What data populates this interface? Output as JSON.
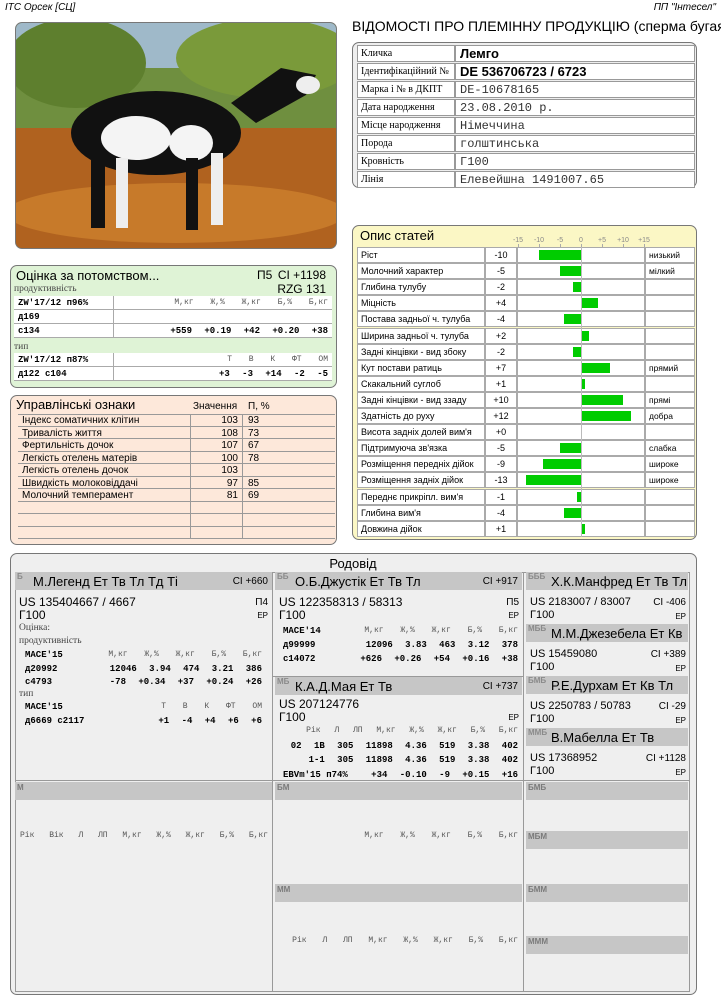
{
  "header": {
    "left": "ІТС Орсек [СЦ]",
    "right": "ПП \"Інтесел\"",
    "title": "ВІДОМОСТІ ПРО ПЛЕМІННУ ПРОДУКЦІЮ (сперма бугая)"
  },
  "identity": [
    [
      "Кличка",
      "Лемго"
    ],
    [
      "Ідентифікаційний №",
      "DE 536706723 / 6723"
    ],
    [
      "Марка і № в ДКПТ",
      "DE-10678165"
    ],
    [
      "Дата народження",
      "23.08.2010 р."
    ],
    [
      "Місце народження",
      "Німеччина"
    ],
    [
      "Порода",
      "голштинська"
    ],
    [
      "Кровність",
      "Г100"
    ],
    [
      "Лінія",
      "Елевейшна 1491007.65"
    ]
  ],
  "progeny": {
    "title": "Оцінка за потомством...",
    "rank": "П5",
    "ci": "CI +1198",
    "production_label": "продуктивність",
    "rzg": "RZG 131",
    "production": [
      [
        "ZW'17/12 п96%",
        "М,кг Ж,% Ж,кг Б,% Б,кг"
      ],
      [
        "д169"
      ],
      [
        "с134",
        "+559 +0.19 +42 +0.20 +38"
      ]
    ],
    "type_label": "тип",
    "type": [
      [
        "ZW'17/12 п87%",
        "Т В К ФТ ОМ"
      ],
      [
        "д122 с104",
        "+3 -3 +14 -2 -5"
      ]
    ]
  },
  "management": {
    "title": "Управлінські ознаки",
    "headers": [
      "Значення",
      "П, %"
    ],
    "rows": [
      [
        "Індекс соматичних клітин",
        103,
        93
      ],
      [
        "Тривалість життя",
        108,
        73
      ],
      [
        "Фертильність дочок",
        107,
        67
      ],
      [
        "Легкість отелень матерів",
        100,
        78
      ],
      [
        "Легкість отелень дочок",
        103
      ],
      [
        "Швидкість молоковіддачі",
        97,
        85
      ],
      [
        "Молочний темперамент",
        81,
        69
      ]
    ]
  },
  "traits": {
    "type": "bar",
    "title": "Опис статей",
    "xlim": [
      -15,
      15
    ],
    "xticks": [
      -15,
      -10,
      -5,
      0,
      {
        "value": 5,
        "label": "+5"
      },
      {
        "value": 10,
        "label": "+10"
      },
      {
        "value": 15,
        "label": "+15"
      }
    ],
    "color": "#00cc00",
    "categories": [
      "Ріст",
      "Молочний характер",
      "Глибина тулубу",
      "Міцність",
      "Постава задньої ч. тулуба",
      "Ширина задньої ч. тулуба",
      "Задні кінцівки - вид збоку",
      "Кут постави ратиць",
      "Скакальний суглоб",
      "Задні кінцівки - вид ззаду",
      "Здатність до руху",
      "Висота задніх долей вим'я",
      "Підтримуюча зв'язка",
      "Розміщення передніх дійок",
      "Розміщення задніх дійок",
      "Переднє прикріпл. вим'я",
      "Глибина вим'я",
      "Довжина дійок"
    ],
    "values": [
      -10,
      -5,
      -2,
      4,
      -4,
      2,
      -2,
      7,
      1,
      10,
      12,
      0,
      -5,
      -9,
      -13,
      -1,
      -4,
      1
    ],
    "value_labels": [
      "-10",
      "-5",
      "-2",
      "+4",
      "-4",
      "+2",
      "-2",
      "+7",
      "+1",
      "+10",
      "+12",
      "+0",
      "-5",
      "-9",
      "-13",
      "-1",
      "-4",
      "+1"
    ],
    "notes": [
      "низький",
      "мілкий",
      null,
      null,
      null,
      null,
      null,
      "прямий",
      null,
      "прямі",
      "добра",
      null,
      "слабка",
      "широке",
      "широке",
      null,
      null,
      null
    ]
  },
  "pedigree": {
    "title": "Родовід",
    "sire": {
      "code": "Б",
      "name": "М.Легенд Ет Тв Тл Тд Ті",
      "ci": "CI +660",
      "id": "US 135404667 / 4667",
      "rank": "П4",
      "blood": "Г100",
      "mark": "EP",
      "eval_label": "Оцінка:",
      "production_label": "продуктивність",
      "production": [
        [
          "MACE'15",
          "М,кг Ж,% Ж,кг Б,% Б,кг"
        ],
        [
          "д20992",
          "12046 3.94 474 3.21 386"
        ],
        [
          "с4793",
          "-78 +0.34 +37 +0.24 +26"
        ]
      ],
      "type_label": "тип",
      "type": [
        [
          "MACE'15",
          "Т В К ФТ ОМ"
        ],
        [
          "д6669 с2117",
          "+1 -4 +4 +6 +6"
        ]
      ]
    },
    "sire_sire": {
      "code": "ББ",
      "name": "О.Б.Джустік Ет Тв Тл",
      "ci": "CI +917",
      "id": "US 122358313 / 58313",
      "rank": "П5",
      "blood": "Г100",
      "mark": "EP",
      "production": [
        [
          "MACE'14",
          "М,кг Ж,% Ж,кг Б,% Б,кг"
        ],
        [
          "д99999",
          "12096 3.83 463 3.12 378"
        ],
        [
          "с14072",
          "+626 +0.26 +54 +0.16 +38"
        ]
      ]
    },
    "sire_dam": {
      "code": "МБ",
      "name": "К.А.Д.Мая Ет Тв",
      "ci": "CI +737",
      "id": "US 207124776",
      "blood": "Г100",
      "mark": "EP",
      "lactations": [
        [
          "Рік Л ЛП М,кг Ж,% Ж,кг Б,% Б,кг"
        ],
        [
          "02 1В 305 11898 4.36 519 3.38 402"
        ],
        [
          "1-1 305 11898 4.36 519 3.38 402"
        ],
        [
          "EBVm'15 п74%",
          "+34 -0.10 -9 +0.15 +16"
        ]
      ]
    },
    "third": [
      {
        "code": "БББ",
        "name": "Х.К.Манфред Ет Тв Тл",
        "id": "US 2183007 / 83007",
        "ci": "CI -406",
        "blood": "Г100",
        "mark": "EP"
      },
      {
        "code": "МББ",
        "name": "М.М.Джезебела Ет Кв",
        "id": "US 15459080",
        "ci": "CI +389",
        "blood": "Г100",
        "mark": "EP"
      },
      {
        "code": "БМБ",
        "name": "Р.Е.Дурхам Ет Кв Тл",
        "id": "US 2250783 / 50783",
        "ci": "CI -29",
        "blood": "Г100",
        "mark": "EP"
      },
      {
        "code": "ММБ",
        "name": "В.Мабелла Ет Тв",
        "id": "US 17368952",
        "ci": "CI +1128",
        "blood": "Г100",
        "mark": "EP"
      }
    ],
    "dam": {
      "code": "М",
      "header": "Рік Вік Л ЛП М,кг Ж,% Ж,кг Б,% Б,кг"
    },
    "dam_sire": {
      "code": "БМ",
      "header": "М,кг Ж,% Ж,кг Б,% Б,кг"
    },
    "dam_dam": {
      "code": "ММ",
      "header": "Рік Л ЛП М,кг Ж,% Ж,кг Б,% Б,кг"
    },
    "third_dam": [
      "БМБ",
      "МБМ",
      "БММ",
      "МММ"
    ]
  }
}
